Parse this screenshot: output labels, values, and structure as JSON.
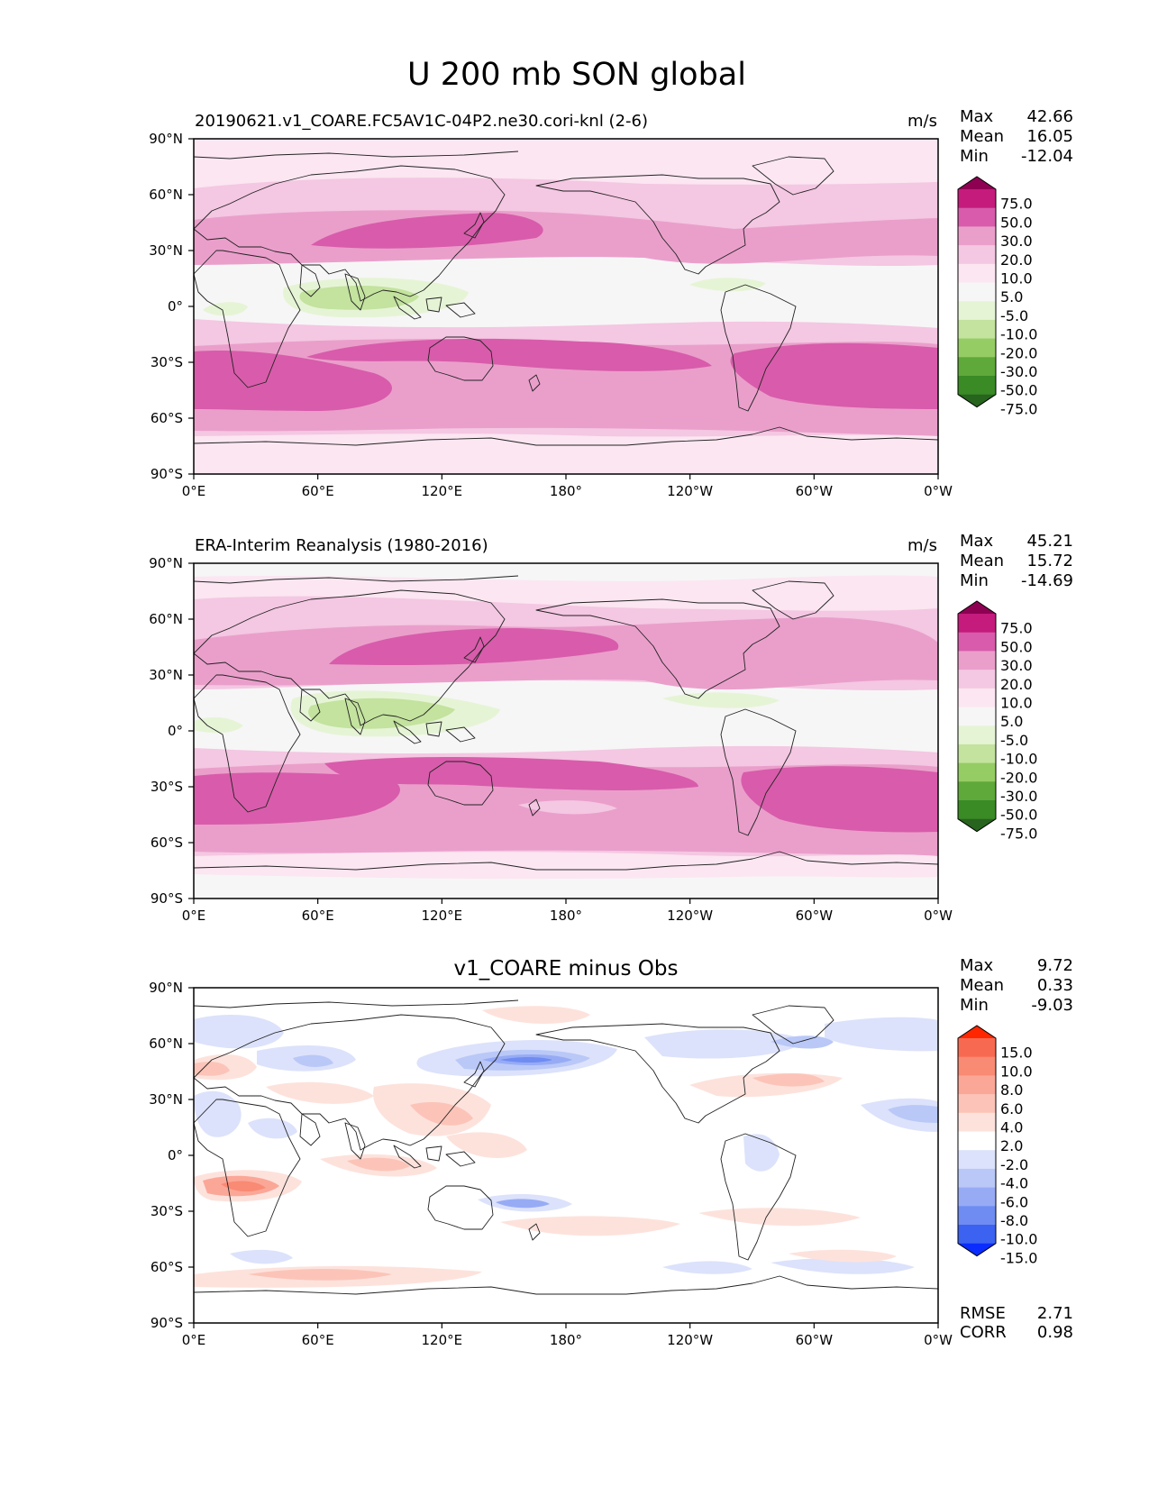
{
  "title": "U 200 mb SON global",
  "units": "m/s",
  "lon_ticks": [
    "0°E",
    "60°E",
    "120°E",
    "180°",
    "120°W",
    "60°W",
    "0°W"
  ],
  "lat_ticks": [
    "90°N",
    "60°N",
    "30°N",
    "0°",
    "30°S",
    "60°S",
    "90°S"
  ],
  "stat_labels": {
    "max": "Max",
    "mean": "Mean",
    "min": "Min",
    "rmse": "RMSE",
    "corr": "CORR"
  },
  "colors": {
    "wind": [
      "#27641e",
      "#3a8a26",
      "#5fa83a",
      "#96cc64",
      "#c3e39e",
      "#e6f4d6",
      "#f6f6f6",
      "#fbe6f1",
      "#f4c7e2",
      "#ea9fcb",
      "#d85cab",
      "#c51b7d",
      "#8e0152"
    ],
    "diff": [
      "#0a2cff",
      "#3b62f0",
      "#6e8cf2",
      "#97abf5",
      "#b9c8f7",
      "#dce2fb",
      "#ffffff",
      "#fde2dc",
      "#fcc4b8",
      "#fba797",
      "#f98a74",
      "#f76a51",
      "#ff2600"
    ]
  },
  "panels": [
    {
      "id": "test",
      "subtitle": "20190621.v1_COARE.FC5AV1C-04P2.ne30.cori-knl (2-6)",
      "units": "m/s",
      "stats": {
        "max": "42.66",
        "mean": "16.05",
        "min": "-12.04"
      },
      "colorbar_labels": [
        "75.0",
        "50.0",
        "30.0",
        "20.0",
        "10.0",
        "5.0",
        "-5.0",
        "-10.0",
        "-20.0",
        "-30.0",
        "-50.0",
        "-75.0"
      ]
    },
    {
      "id": "reference",
      "subtitle": "ERA-Interim Reanalysis (1980-2016)",
      "units": "m/s",
      "stats": {
        "max": "45.21",
        "mean": "15.72",
        "min": "-14.69"
      },
      "colorbar_labels": [
        "75.0",
        "50.0",
        "30.0",
        "20.0",
        "10.0",
        "5.0",
        "-5.0",
        "-10.0",
        "-20.0",
        "-30.0",
        "-50.0",
        "-75.0"
      ]
    },
    {
      "id": "difference",
      "subtitle": "v1_COARE minus Obs",
      "stats": {
        "max": "9.72",
        "mean": "0.33",
        "min": "-9.03"
      },
      "colorbar_labels": [
        "15.0",
        "10.0",
        "8.0",
        "6.0",
        "4.0",
        "2.0",
        "-2.0",
        "-4.0",
        "-6.0",
        "-8.0",
        "-10.0",
        "-15.0"
      ],
      "metrics": {
        "rmse": "2.71",
        "corr": "0.98"
      }
    }
  ]
}
